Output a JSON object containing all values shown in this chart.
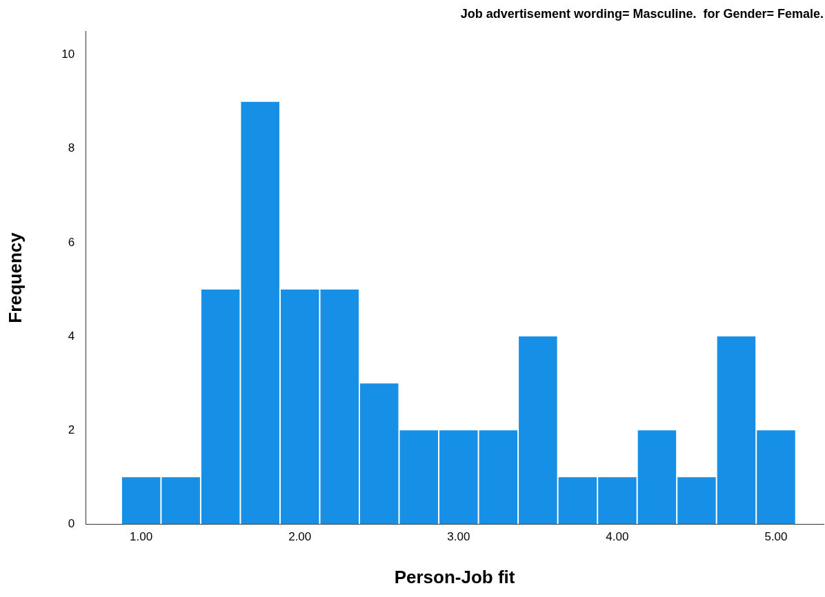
{
  "chart_data": {
    "type": "histogram",
    "title": "Job advertisement wording= Masculine.  for Gender= Female.",
    "xlabel": "Person-Job fit",
    "ylabel": "Frequency",
    "bins": [
      0.875,
      1.125,
      1.375,
      1.625,
      1.875,
      2.125,
      2.375,
      2.625,
      2.875,
      3.125,
      3.375,
      3.625,
      3.875,
      4.125,
      4.375,
      4.625,
      4.875,
      5.125
    ],
    "values": [
      1,
      1,
      5,
      9,
      5,
      5,
      3,
      2,
      2,
      2,
      4,
      1,
      1,
      2,
      1,
      4,
      2
    ],
    "color": "#1590e6",
    "xlim": [
      0.65,
      5.3
    ],
    "xticks": [
      {
        "value": 1,
        "label": "1.00"
      },
      {
        "value": 2,
        "label": "2.00"
      },
      {
        "value": 3,
        "label": "3.00"
      },
      {
        "value": 4,
        "label": "4.00"
      },
      {
        "value": 5,
        "label": "5.00"
      }
    ],
    "ylim": [
      0,
      10.5
    ],
    "yticks": [
      0,
      2,
      4,
      6,
      8,
      10
    ],
    "grid": false,
    "legend": false
  }
}
